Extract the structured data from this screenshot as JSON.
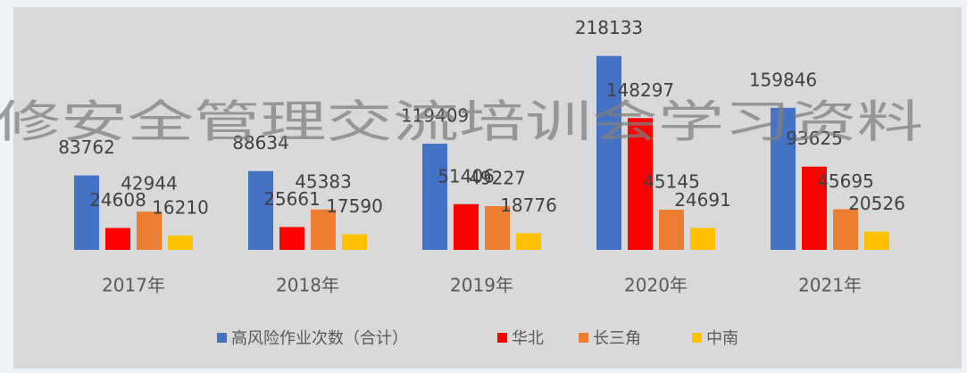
{
  "chart_data": {
    "type": "bar",
    "categories": [
      "2017年",
      "2018年",
      "2019年",
      "2020年",
      "2021年"
    ],
    "series": [
      {
        "name": "高风险作业次数（合计）",
        "color": "#4472c4",
        "values": [
          83762,
          88634,
          119409,
          218133,
          159846
        ]
      },
      {
        "name": "华北",
        "color": "#ff0000",
        "values": [
          24608,
          25661,
          51406,
          148297,
          93625
        ]
      },
      {
        "name": "长三角",
        "color": "#ed7d31",
        "values": [
          42944,
          45383,
          49227,
          45145,
          45695
        ]
      },
      {
        "name": "中南",
        "color": "#ffc000",
        "values": [
          16210,
          17590,
          18776,
          24691,
          20526
        ]
      }
    ],
    "ylim": [
      0,
      250000
    ],
    "watermark": "修安全管理交流培训会学习资料"
  }
}
